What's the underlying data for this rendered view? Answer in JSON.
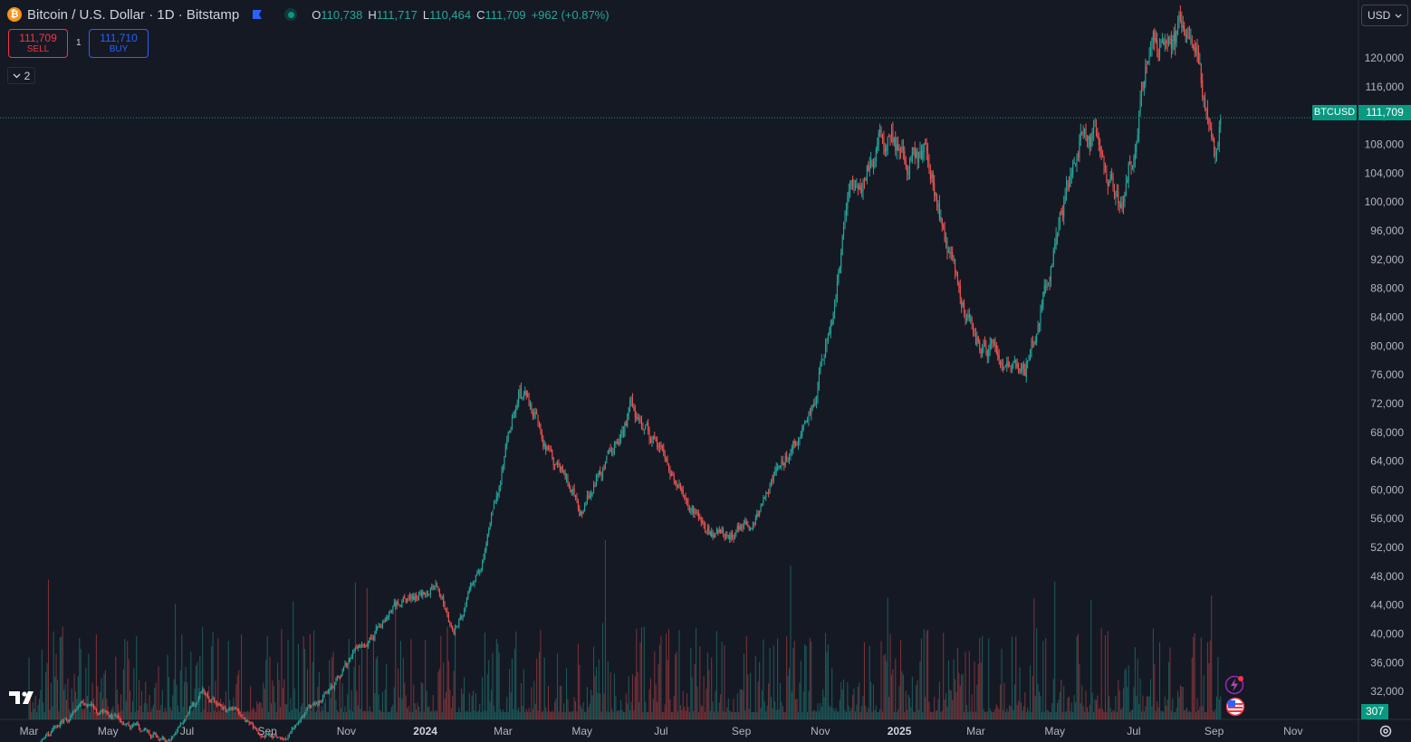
{
  "header": {
    "coin_glyph": "₿",
    "title": "Bitcoin / U.S. Dollar · 1D · Bitstamp",
    "ohlc": {
      "o_label": "O",
      "o_value": "110,738",
      "h_label": "H",
      "h_value": "111,717",
      "l_label": "L",
      "l_value": "110,464",
      "c_label": "C",
      "c_value": "111,709",
      "change": "+962 (+0.87%)"
    }
  },
  "trade": {
    "sell_price": "111,709",
    "sell_label": "SELL",
    "buy_price": "111,710",
    "buy_label": "BUY",
    "spread": "1"
  },
  "indicators_count": "2",
  "currency": "USD",
  "price_badge": {
    "symbol": "BTCUSD",
    "price": "111,709"
  },
  "volume_badge": "307",
  "colors": {
    "background": "#151924",
    "up": "#26a69a",
    "down": "#ef5350",
    "accent": "#089981"
  },
  "icons": [
    "bitcoin-icon",
    "flag-icon",
    "market-open-icon",
    "chevron-down-icon",
    "settings-icon",
    "tradingview-logo",
    "dividend-event-icon",
    "us-flag-event-icon"
  ],
  "chart_data": {
    "type": "candlestick",
    "price_axis": {
      "ticks": [
        "120,000",
        "116,000",
        "112,000",
        "108,000",
        "104,000",
        "100,000",
        "96,000",
        "92,000",
        "88,000",
        "84,000",
        "80,000",
        "76,000",
        "72,000",
        "68,000",
        "64,000",
        "60,000",
        "56,000",
        "52,000",
        "48,000",
        "44,000",
        "40,000",
        "36,000",
        "32,000"
      ],
      "range": [
        28500,
        124000
      ]
    },
    "time_axis": {
      "labels": [
        "Mar",
        "May",
        "Jul",
        "Sep",
        "Nov",
        "2024",
        "Mar",
        "May",
        "Jul",
        "Sep",
        "Nov",
        "2025",
        "Mar",
        "May",
        "Jul",
        "Sep",
        "Nov"
      ],
      "range": [
        "2023-02-15",
        "2025-11-20"
      ]
    },
    "current_price": 111709,
    "close_path_keypoints": [
      [
        "2023-03-01",
        23500
      ],
      [
        "2023-04-14",
        30400
      ],
      [
        "2023-06-15",
        25000
      ],
      [
        "2023-07-13",
        31400
      ],
      [
        "2023-09-11",
        25000
      ],
      [
        "2023-10-23",
        33000
      ],
      [
        "2023-12-08",
        44000
      ],
      [
        "2024-01-11",
        46600
      ],
      [
        "2024-01-23",
        39000
      ],
      [
        "2024-02-15",
        51800
      ],
      [
        "2024-03-14",
        73500
      ],
      [
        "2024-05-01",
        57000
      ],
      [
        "2024-06-07",
        71500
      ],
      [
        "2024-08-05",
        54000
      ],
      [
        "2024-09-06",
        53800
      ],
      [
        "2024-10-29",
        72500
      ],
      [
        "2024-11-22",
        99000
      ],
      [
        "2024-12-17",
        107500
      ],
      [
        "2025-01-21",
        106000
      ],
      [
        "2025-03-01",
        80000
      ],
      [
        "2025-04-08",
        76500
      ],
      [
        "2025-05-22",
        111000
      ],
      [
        "2025-06-22",
        99500
      ],
      [
        "2025-07-14",
        121000
      ],
      [
        "2025-08-14",
        124000
      ],
      [
        "2025-09-01",
        108000
      ],
      [
        "2025-09-06",
        111709
      ]
    ]
  }
}
